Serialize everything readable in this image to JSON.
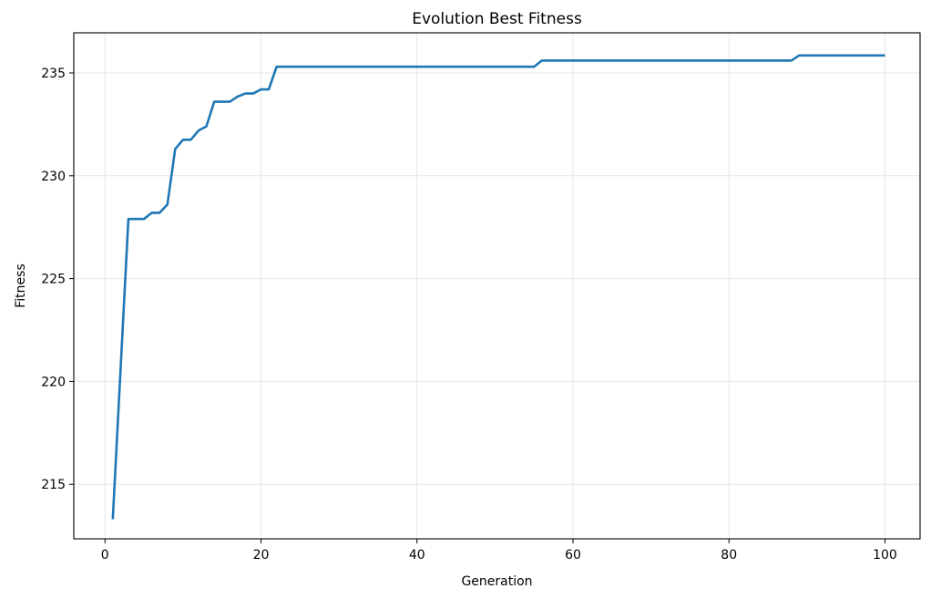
{
  "chart_data": {
    "type": "line",
    "title": "Evolution Best Fitness",
    "xlabel": "Generation",
    "ylabel": "Fitness",
    "xlim": [
      -4,
      104.5
    ],
    "ylim": [
      212.35,
      236.95
    ],
    "xticks": [
      0,
      20,
      40,
      60,
      80,
      100
    ],
    "yticks": [
      215,
      220,
      225,
      230,
      235
    ],
    "grid": true,
    "legend": "none",
    "series": [
      {
        "color": "#1f77b4",
        "x": [
          1,
          3,
          4,
          5,
          6,
          7,
          8,
          9,
          10,
          11,
          12,
          13,
          14,
          15,
          16,
          17,
          18,
          19,
          20,
          21,
          22,
          55,
          56,
          88,
          89,
          100
        ],
        "y": [
          213.3,
          227.9,
          227.9,
          227.9,
          228.2,
          228.2,
          228.6,
          231.3,
          231.75,
          231.75,
          232.2,
          232.4,
          233.6,
          233.6,
          233.6,
          233.85,
          234.0,
          234.0,
          234.2,
          234.2,
          235.3,
          235.3,
          235.6,
          235.6,
          235.85,
          235.85
        ]
      }
    ]
  }
}
